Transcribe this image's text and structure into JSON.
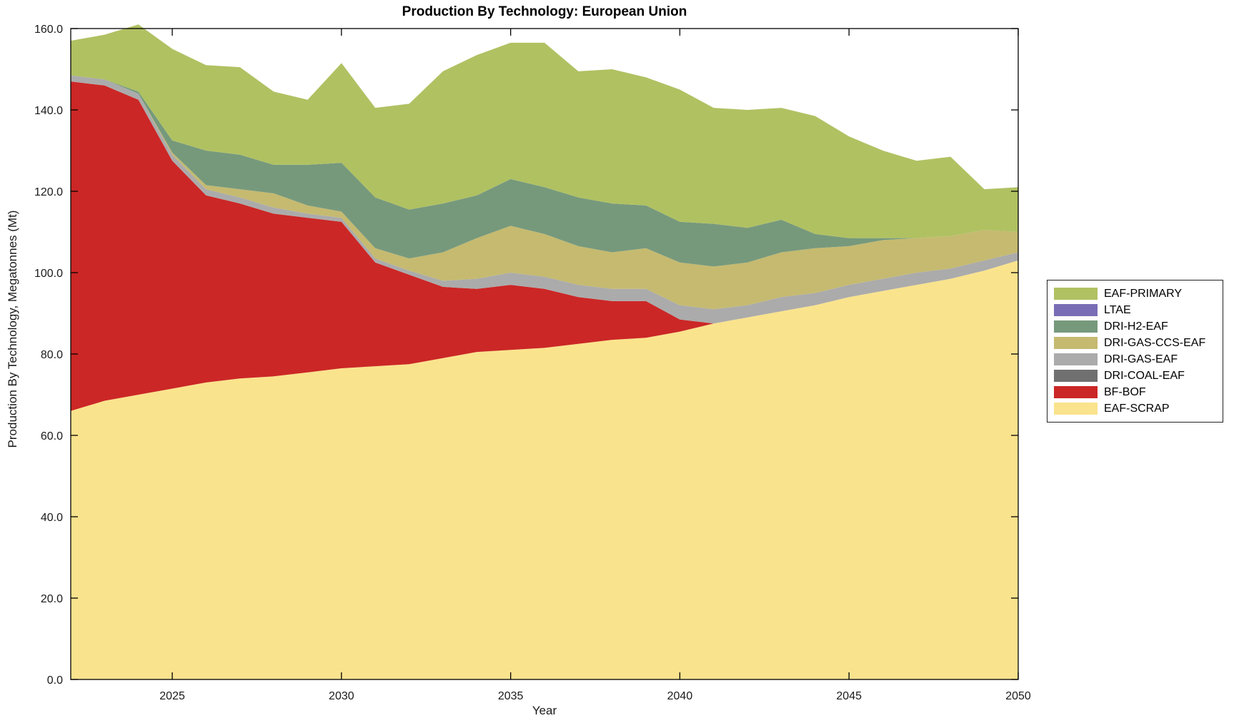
{
  "title": "Production By Technology: European Union",
  "axes": {
    "xlabel": "Year",
    "ylabel": "Production By Technology, Megatonnes (Mt)",
    "x_ticks": [
      2025,
      2030,
      2035,
      2040,
      2045,
      2050
    ],
    "y_ticks": [
      "0.0",
      "20.0",
      "40.0",
      "60.0",
      "80.0",
      "100.0",
      "120.0",
      "140.0",
      "160.0"
    ],
    "y_tick_values": [
      0,
      20,
      40,
      60,
      80,
      100,
      120,
      140,
      160
    ]
  },
  "legend": {
    "entries": [
      {
        "label": "EAF-PRIMARY",
        "color": "#b0c162"
      },
      {
        "label": "LTAE",
        "color": "#796eb5"
      },
      {
        "label": "DRI-H2-EAF",
        "color": "#76997c"
      },
      {
        "label": "DRI-GAS-CCS-EAF",
        "color": "#c5ba70"
      },
      {
        "label": "DRI-GAS-EAF",
        "color": "#ababab"
      },
      {
        "label": "DRI-COAL-EAF",
        "color": "#707070"
      },
      {
        "label": "BF-BOF",
        "color": "#cb2726"
      },
      {
        "label": "EAF-SCRAP",
        "color": "#fae38d"
      }
    ]
  },
  "chart_data": {
    "type": "area",
    "stacked": true,
    "title": "Production By Technology: European Union",
    "xlabel": "Year",
    "ylabel": "Production By Technology, Megatonnes (Mt)",
    "xlim": [
      2022,
      2050
    ],
    "ylim": [
      0,
      160
    ],
    "grid": false,
    "legend_position": "right-outside",
    "x": [
      2022,
      2023,
      2024,
      2025,
      2026,
      2027,
      2028,
      2029,
      2030,
      2031,
      2032,
      2033,
      2034,
      2035,
      2036,
      2037,
      2038,
      2039,
      2040,
      2041,
      2042,
      2043,
      2044,
      2045,
      2046,
      2047,
      2048,
      2049,
      2050
    ],
    "series": [
      {
        "name": "EAF-SCRAP",
        "color": "#fae38d",
        "values": [
          66,
          68.5,
          70,
          71.5,
          73,
          74,
          74.5,
          75.5,
          76.5,
          77,
          77.5,
          79,
          80.5,
          81,
          81.5,
          82.5,
          83.5,
          84,
          85.5,
          87.5,
          89,
          90.5,
          92,
          94,
          95.5,
          97,
          98.5,
          100.5,
          103
        ]
      },
      {
        "name": "BF-BOF",
        "color": "#cb2726",
        "values": [
          81,
          77.5,
          72.5,
          56,
          46,
          43,
          40,
          38,
          36,
          25.5,
          22,
          17.5,
          15.5,
          16,
          14.5,
          11.5,
          9.5,
          9,
          3,
          0,
          0,
          0,
          0,
          0,
          0,
          0,
          0,
          0,
          0
        ]
      },
      {
        "name": "DRI-COAL-EAF",
        "color": "#707070",
        "values": [
          0,
          0,
          0,
          0,
          0,
          0,
          0,
          0,
          0,
          0,
          0,
          0,
          0,
          0,
          0,
          0,
          0,
          0,
          0,
          0,
          0,
          0,
          0,
          0,
          0,
          0,
          0,
          0,
          0
        ]
      },
      {
        "name": "DRI-GAS-EAF",
        "color": "#ababab",
        "values": [
          1.5,
          1.5,
          1.5,
          1.5,
          1.5,
          1.5,
          1.5,
          1,
          1,
          1,
          1,
          1.5,
          2.5,
          3,
          3,
          3,
          3,
          3,
          3.5,
          3.5,
          3,
          3.5,
          3,
          3,
          3,
          3,
          2.5,
          2.5,
          2
        ]
      },
      {
        "name": "DRI-GAS-CCS-EAF",
        "color": "#c5ba70",
        "values": [
          0,
          0,
          0,
          0.5,
          1,
          2,
          3.5,
          2,
          1.5,
          2.5,
          3,
          7,
          10,
          11.5,
          10.5,
          9.5,
          9,
          10,
          10.5,
          10.5,
          10.5,
          11,
          11,
          9.5,
          9.5,
          8.5,
          8,
          7.5,
          5
        ]
      },
      {
        "name": "DRI-H2-EAF",
        "color": "#76997c",
        "values": [
          0,
          0,
          0.5,
          3,
          8.5,
          8.5,
          7,
          10,
          12,
          12.5,
          12,
          12,
          10.5,
          11.5,
          11.5,
          12,
          12,
          10.5,
          10,
          10.5,
          8.5,
          8,
          3.5,
          2,
          0.5,
          0,
          0,
          0,
          0
        ]
      },
      {
        "name": "LTAE",
        "color": "#796eb5",
        "values": [
          0,
          0,
          0,
          0,
          0,
          0,
          0,
          0,
          0,
          0,
          0,
          0,
          0,
          0,
          0,
          0,
          0,
          0,
          0,
          0,
          0,
          0,
          0,
          0,
          0,
          0,
          0,
          0,
          0
        ]
      },
      {
        "name": "EAF-PRIMARY",
        "color": "#b0c162",
        "values": [
          8.5,
          11,
          16.5,
          22.5,
          21,
          21.5,
          18,
          16,
          24.5,
          22,
          26,
          32.5,
          34.5,
          33.5,
          35.5,
          31,
          33,
          31.5,
          32.5,
          28.5,
          29,
          27.5,
          29,
          25,
          21.5,
          19,
          19.5,
          10,
          11
        ]
      }
    ],
    "totals": [
      157,
      158.5,
      161,
      155,
      151,
      150.5,
      144.5,
      142.5,
      151.5,
      140.5,
      141.5,
      149.5,
      153.5,
      156.5,
      156.5,
      149.5,
      150,
      148,
      145,
      140.5,
      140,
      140.5,
      138.5,
      133.5,
      130,
      127.5,
      128.5,
      120.5,
      121
    ]
  }
}
